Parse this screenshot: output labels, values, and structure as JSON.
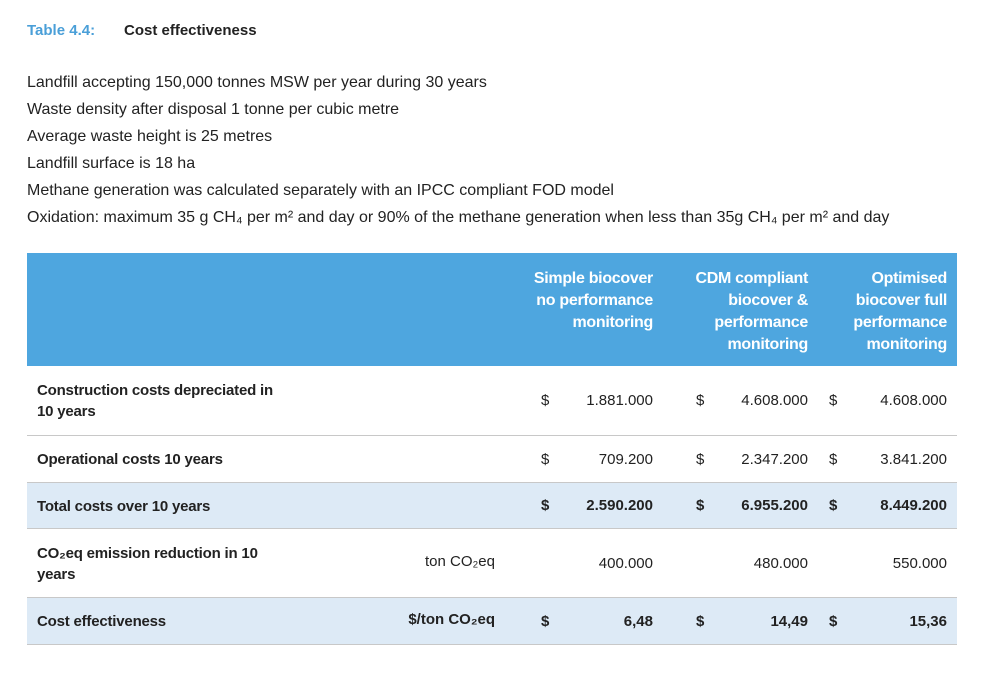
{
  "header": {
    "label": "Table 4.4:",
    "title": "Cost effectiveness"
  },
  "assumptions": [
    "Landfill accepting 150,000 tonnes MSW per year during 30 years",
    "Waste density after disposal 1 tonne per cubic metre",
    "Average waste height is 25 metres",
    "Landfill surface is 18 ha",
    "Methane generation was calculated separately with an IPCC compliant FOD model",
    "Oxidation: maximum 35 g CH₄ per m² and day or 90% of the methane generation when less than 35g CH₄ per m² and day"
  ],
  "table": {
    "columns": [
      [
        "Simple biocover",
        "no performance",
        "monitoring"
      ],
      [
        "CDM compliant",
        "biocover &",
        "performance",
        "monitoring"
      ],
      [
        "Optimised",
        "biocover full",
        "performance",
        "monitoring"
      ]
    ],
    "rows": [
      {
        "label": "Construction costs depreciated in 10 years",
        "cells": [
          {
            "currency": "$",
            "value": "1.881.000"
          },
          {
            "currency": "$",
            "value": "4.608.000"
          },
          {
            "currency": "$",
            "value": "4.608.000"
          }
        ]
      },
      {
        "label": "Operational costs 10 years",
        "cells": [
          {
            "currency": "$",
            "value": "709.200"
          },
          {
            "currency": "$",
            "value": "2.347.200"
          },
          {
            "currency": "$",
            "value": "3.841.200"
          }
        ]
      },
      {
        "label": "Total costs over 10 years",
        "cells": [
          {
            "currency": "$",
            "value": "2.590.200"
          },
          {
            "currency": "$",
            "value": "6.955.200"
          },
          {
            "currency": "$",
            "value": "8.449.200"
          }
        ]
      },
      {
        "label": "CO₂eq emission reduction in 10 years",
        "unit": "ton CO₂eq",
        "cells": [
          {
            "value": "400.000"
          },
          {
            "value": "480.000"
          },
          {
            "value": "550.000"
          }
        ]
      },
      {
        "label": "Cost effectiveness",
        "unit": "$/ton CO₂eq",
        "cells": [
          {
            "currency": "$",
            "value": "6,48"
          },
          {
            "currency": "$",
            "value": "14,49"
          },
          {
            "currency": "$",
            "value": "15,36"
          }
        ]
      }
    ]
  }
}
